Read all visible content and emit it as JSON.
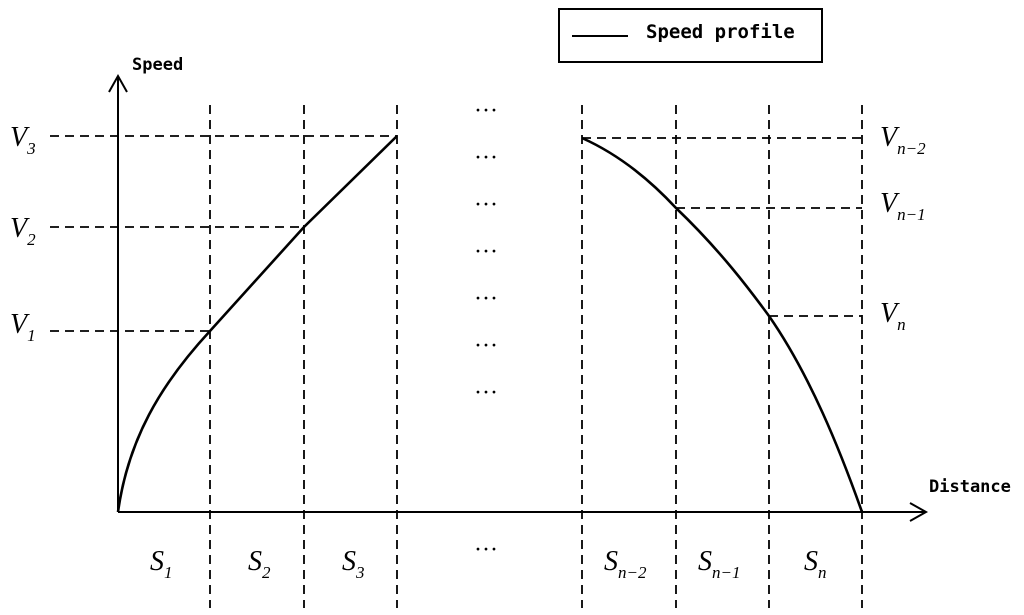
{
  "legend": {
    "label": "Speed profile"
  },
  "axes": {
    "y_title": "Speed",
    "x_title": "Distance"
  },
  "speed_labels": {
    "v3": {
      "main": "V",
      "sub": "3"
    },
    "v2": {
      "main": "V",
      "sub": "2"
    },
    "v1": {
      "main": "V",
      "sub": "1"
    },
    "vn2": {
      "main": "V",
      "sub": "n−2"
    },
    "vn1": {
      "main": "V",
      "sub": "n−1"
    },
    "vn": {
      "main": "V",
      "sub": "n"
    }
  },
  "segment_labels": {
    "s1": {
      "main": "S",
      "sub": "1"
    },
    "s2": {
      "main": "S",
      "sub": "2"
    },
    "s3": {
      "main": "S",
      "sub": "3"
    },
    "sn2": {
      "main": "S",
      "sub": "n−2"
    },
    "sn1": {
      "main": "S",
      "sub": "n−1"
    },
    "sn": {
      "main": "S",
      "sub": "n"
    }
  },
  "ellipsis": "···",
  "colors": {
    "line": "#000000",
    "background": "#ffffff"
  }
}
